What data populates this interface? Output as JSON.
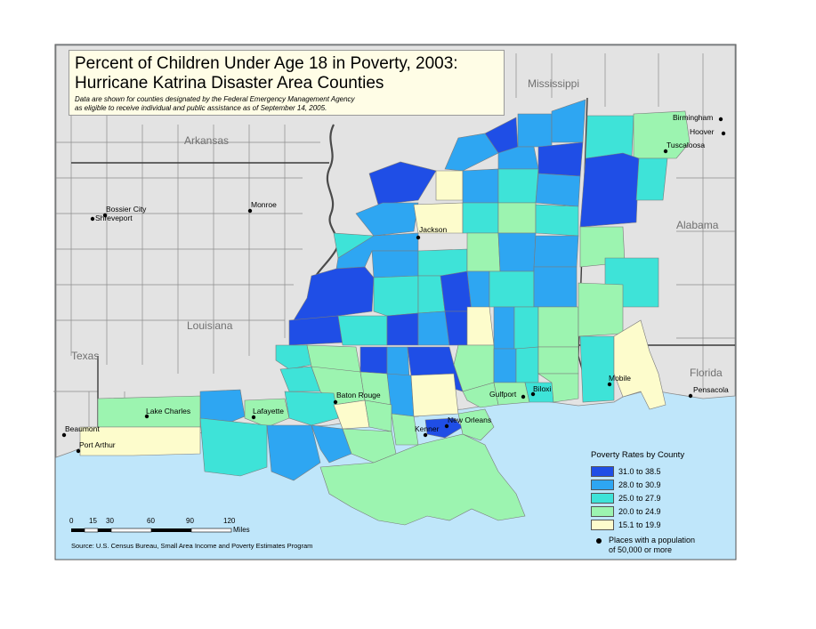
{
  "title": {
    "line1": "Percent of Children Under Age 18 in Poverty, 2003:",
    "line2": "Hurricane Katrina Disaster Area Counties",
    "note_line1": "Data are shown for counties designated by the Federal Emergency Management Agency",
    "note_line2": "as eligible to receive individual and public assistance as of September 14, 2005."
  },
  "states": [
    "Arkansas",
    "Mississippi",
    "Louisiana",
    "Alabama",
    "Texas",
    "Florida"
  ],
  "cities": [
    "Birmingham",
    "Hoover",
    "Tuscaloosa",
    "Bossier City",
    "Shreveport",
    "Monroe",
    "Jackson",
    "Mobile",
    "Pensacola",
    "Lake Charles",
    "Lafayette",
    "Baton Rouge",
    "Gulfport",
    "Biloxi",
    "New Orleans",
    "Kenner",
    "Beaumont",
    "Port Arthur"
  ],
  "legend": {
    "title": "Poverty Rates by County",
    "classes": [
      {
        "label": "31.0 to 38.5",
        "color": "#1f4ee6"
      },
      {
        "label": "28.0 to 30.9",
        "color": "#2ea6f2"
      },
      {
        "label": "25.0 to 27.9",
        "color": "#3ee3d8"
      },
      {
        "label": "20.0 to 24.9",
        "color": "#9cf4b0"
      },
      {
        "label": "15.1 to 19.9",
        "color": "#fdfccc"
      }
    ],
    "places_line1": "Places with a population",
    "places_line2": "of 50,000 or more"
  },
  "scale": {
    "ticks": [
      "0",
      "15",
      "30",
      "60",
      "90",
      "120"
    ],
    "unit": "Miles"
  },
  "source": "Source: U.S. Census Bureau, Small Area Income and Poverty Estimates Program",
  "colors": {
    "water": "#bfe6fa",
    "land_other": "#e3e3e3",
    "border": "#6e6e6e"
  }
}
